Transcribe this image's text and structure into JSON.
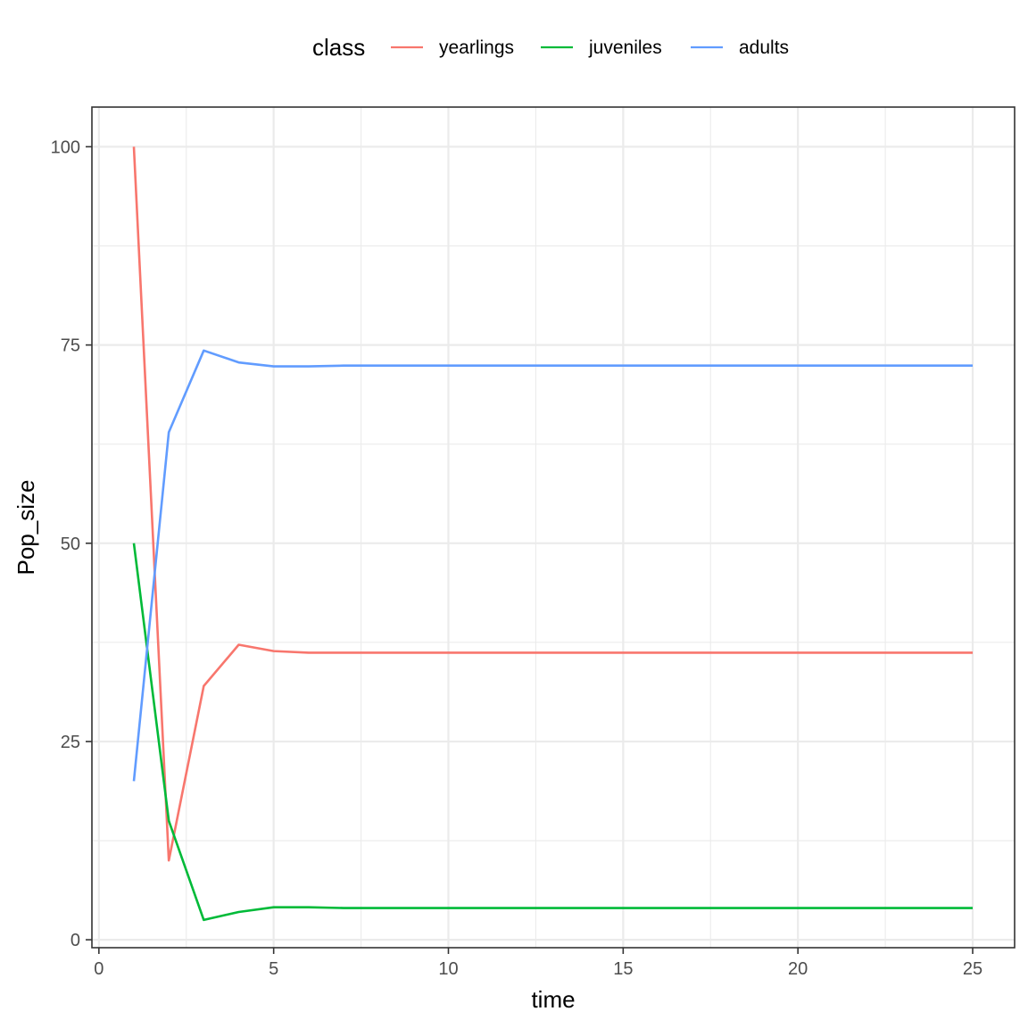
{
  "chart_data": {
    "type": "line",
    "xlabel": "time",
    "ylabel": "Pop_size",
    "xlim": [
      -0.2,
      26.2
    ],
    "ylim": [
      -1,
      105
    ],
    "x_ticks": [
      0,
      5,
      10,
      15,
      20,
      25
    ],
    "y_ticks": [
      0,
      25,
      50,
      75,
      100
    ],
    "x_tick_labels": [
      "0",
      "5",
      "10",
      "15",
      "20",
      "25"
    ],
    "y_tick_labels": [
      "0",
      "25",
      "50",
      "75",
      "100"
    ],
    "grid": true,
    "legend": {
      "title": "class",
      "position": "top"
    },
    "x": [
      1,
      2,
      3,
      4,
      5,
      6,
      7,
      8,
      9,
      10,
      11,
      12,
      13,
      14,
      15,
      16,
      17,
      18,
      19,
      20,
      21,
      22,
      23,
      24,
      25
    ],
    "series": [
      {
        "name": "yearlings",
        "color": "#F8766D",
        "values": [
          100,
          10,
          32,
          37.2,
          36.4,
          36.2,
          36.2,
          36.2,
          36.2,
          36.2,
          36.2,
          36.2,
          36.2,
          36.2,
          36.2,
          36.2,
          36.2,
          36.2,
          36.2,
          36.2,
          36.2,
          36.2,
          36.2,
          36.2,
          36.2
        ]
      },
      {
        "name": "juveniles",
        "color": "#00BA38",
        "values": [
          50,
          15,
          2.5,
          3.5,
          4.1,
          4.1,
          4.0,
          4.0,
          4.0,
          4.0,
          4.0,
          4.0,
          4.0,
          4.0,
          4.0,
          4.0,
          4.0,
          4.0,
          4.0,
          4.0,
          4.0,
          4.0,
          4.0,
          4.0,
          4.0
        ]
      },
      {
        "name": "adults",
        "color": "#619CFF",
        "values": [
          20,
          64,
          74.3,
          72.8,
          72.3,
          72.3,
          72.4,
          72.4,
          72.4,
          72.4,
          72.4,
          72.4,
          72.4,
          72.4,
          72.4,
          72.4,
          72.4,
          72.4,
          72.4,
          72.4,
          72.4,
          72.4,
          72.4,
          72.4,
          72.4
        ]
      }
    ]
  }
}
